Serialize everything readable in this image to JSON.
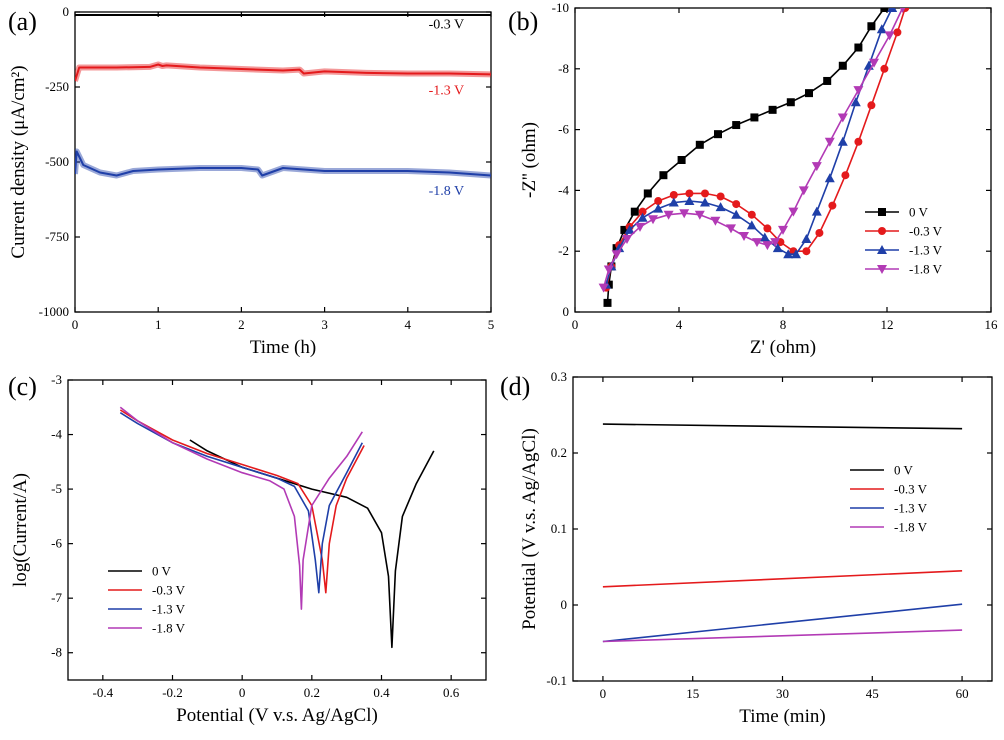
{
  "colors": {
    "black": "#000000",
    "red": "#e41a1c",
    "blue": "#1f3fa8",
    "magenta": "#b23ab5"
  },
  "chart_data": [
    {
      "id": "a",
      "panel_label": "(a)",
      "type": "line",
      "xlabel": "Time (h)",
      "ylabel": "Current density (μA/cm²)",
      "xlim": [
        0,
        5
      ],
      "ylim": [
        -1000,
        0
      ],
      "xticks": [
        0,
        1,
        2,
        3,
        4,
        5
      ],
      "yticks": [
        0,
        -250,
        -500,
        -750,
        -1000
      ],
      "series": [
        {
          "name": "-0.3 V",
          "color": "#000000",
          "x": [
            0,
            5
          ],
          "y": [
            -10,
            -10
          ]
        },
        {
          "name": "-1.3 V",
          "color": "#e41a1c",
          "x": [
            0,
            0.05,
            0.5,
            0.9,
            1.0,
            1.05,
            1.1,
            1.5,
            2,
            2.5,
            2.7,
            2.75,
            3,
            3.5,
            4,
            4.5,
            5
          ],
          "y": [
            -230,
            -185,
            -185,
            -183,
            -175,
            -180,
            -178,
            -185,
            -190,
            -195,
            -192,
            -205,
            -198,
            -203,
            -205,
            -205,
            -208
          ]
        },
        {
          "name": "-1.8 V",
          "color": "#1f3fa8",
          "x": [
            0,
            0.02,
            0.1,
            0.3,
            0.5,
            0.7,
            1,
            1.5,
            2,
            2.2,
            2.25,
            2.5,
            3,
            3.5,
            4,
            4.5,
            5
          ],
          "y": [
            -540,
            -465,
            -510,
            -535,
            -545,
            -530,
            -525,
            -520,
            -520,
            -525,
            -545,
            -520,
            -530,
            -530,
            -530,
            -535,
            -545
          ]
        }
      ],
      "annotations": [
        {
          "text": "-0.3 V",
          "x": 4.25,
          "y": -55,
          "color": "#000000"
        },
        {
          "text": "-1.3 V",
          "x": 4.25,
          "y": -275,
          "color": "#e41a1c"
        },
        {
          "text": "-1.8 V",
          "x": 4.25,
          "y": -610,
          "color": "#1f3fa8"
        }
      ]
    },
    {
      "id": "b",
      "panel_label": "(b)",
      "type": "scatter",
      "xlabel": "Z' (ohm)",
      "ylabel": "-Z'' (ohm)",
      "xlim": [
        0,
        16
      ],
      "ylim": [
        0,
        -10
      ],
      "xticks": [
        0,
        4,
        8,
        12,
        16
      ],
      "yticks": [
        0,
        -2,
        -4,
        -6,
        -8,
        -10
      ],
      "legend": "right",
      "series": [
        {
          "name": "0 V",
          "color": "#000000",
          "marker": "square",
          "x": [
            1.25,
            1.3,
            1.4,
            1.6,
            1.9,
            2.3,
            2.8,
            3.4,
            4.1,
            4.8,
            5.5,
            6.2,
            6.9,
            7.6,
            8.3,
            9.0,
            9.7,
            10.3,
            10.9,
            11.4,
            11.9
          ],
          "y": [
            -0.3,
            -0.9,
            -1.5,
            -2.1,
            -2.7,
            -3.3,
            -3.9,
            -4.5,
            -5.0,
            -5.5,
            -5.85,
            -6.15,
            -6.4,
            -6.65,
            -6.9,
            -7.2,
            -7.6,
            -8.1,
            -8.7,
            -9.4,
            -10
          ]
        },
        {
          "name": "-0.3 V",
          "color": "#e41a1c",
          "marker": "circle",
          "x": [
            1.2,
            1.4,
            1.7,
            2.1,
            2.6,
            3.2,
            3.8,
            4.4,
            5.0,
            5.6,
            6.2,
            6.8,
            7.4,
            7.9,
            8.4,
            8.9,
            9.4,
            9.9,
            10.4,
            10.9,
            11.4,
            11.9,
            12.4,
            12.7
          ],
          "y": [
            -0.8,
            -1.5,
            -2.2,
            -2.8,
            -3.3,
            -3.65,
            -3.85,
            -3.9,
            -3.9,
            -3.8,
            -3.55,
            -3.2,
            -2.75,
            -2.3,
            -2.0,
            -2.0,
            -2.6,
            -3.5,
            -4.5,
            -5.6,
            -6.8,
            -8.0,
            -9.2,
            -10
          ]
        },
        {
          "name": "-1.3 V",
          "color": "#1f3fa8",
          "marker": "triangle-up",
          "x": [
            1.2,
            1.4,
            1.7,
            2.1,
            2.6,
            3.2,
            3.8,
            4.4,
            5.0,
            5.6,
            6.2,
            6.8,
            7.3,
            7.8,
            8.2,
            8.5,
            8.9,
            9.3,
            9.8,
            10.3,
            10.8,
            11.3,
            11.8,
            12.2
          ],
          "y": [
            -0.9,
            -1.5,
            -2.1,
            -2.7,
            -3.1,
            -3.4,
            -3.6,
            -3.65,
            -3.6,
            -3.45,
            -3.2,
            -2.85,
            -2.45,
            -2.1,
            -1.9,
            -1.9,
            -2.4,
            -3.3,
            -4.4,
            -5.6,
            -6.9,
            -8.1,
            -9.3,
            -10
          ]
        },
        {
          "name": "-1.8 V",
          "color": "#b23ab5",
          "marker": "triangle-down",
          "x": [
            1.1,
            1.3,
            1.6,
            2.0,
            2.5,
            3.0,
            3.6,
            4.2,
            4.8,
            5.4,
            6.0,
            6.5,
            7.0,
            7.4,
            7.7,
            8.0,
            8.4,
            8.8,
            9.3,
            9.8,
            10.3,
            10.9,
            11.5,
            12.1,
            12.6
          ],
          "y": [
            -0.8,
            -1.4,
            -1.9,
            -2.4,
            -2.8,
            -3.05,
            -3.2,
            -3.25,
            -3.2,
            -3.0,
            -2.75,
            -2.5,
            -2.3,
            -2.2,
            -2.3,
            -2.7,
            -3.3,
            -4.0,
            -4.8,
            -5.6,
            -6.4,
            -7.3,
            -8.2,
            -9.1,
            -10
          ]
        }
      ]
    },
    {
      "id": "c",
      "panel_label": "(c)",
      "type": "line",
      "xlabel": "Potential (V v.s. Ag/AgCl)",
      "ylabel": "log(Current/A)",
      "xlim": [
        -0.5,
        0.7
      ],
      "ylim": [
        -8.5,
        -3
      ],
      "xticks": [
        -0.4,
        -0.2,
        0.0,
        0.2,
        0.4,
        0.6
      ],
      "yticks": [
        -3,
        -4,
        -5,
        -6,
        -7,
        -8
      ],
      "legend": "bottom-left",
      "series": [
        {
          "name": "0 V",
          "color": "#000000",
          "x": [
            -0.15,
            -0.1,
            0.0,
            0.1,
            0.2,
            0.3,
            0.36,
            0.4,
            0.42,
            0.43,
            0.44,
            0.46,
            0.5,
            0.55
          ],
          "y": [
            -4.1,
            -4.3,
            -4.6,
            -4.8,
            -5.0,
            -5.15,
            -5.35,
            -5.8,
            -6.6,
            -7.9,
            -6.5,
            -5.5,
            -4.9,
            -4.3
          ]
        },
        {
          "name": "-0.3 V",
          "color": "#e41a1c",
          "x": [
            -0.35,
            -0.3,
            -0.2,
            -0.1,
            0.0,
            0.1,
            0.16,
            0.2,
            0.23,
            0.24,
            0.25,
            0.27,
            0.3,
            0.35
          ],
          "y": [
            -3.55,
            -3.75,
            -4.1,
            -4.35,
            -4.55,
            -4.75,
            -4.9,
            -5.3,
            -6.3,
            -6.9,
            -6.0,
            -5.3,
            -4.8,
            -4.2
          ]
        },
        {
          "name": "-1.3 V",
          "color": "#1f3fa8",
          "x": [
            -0.35,
            -0.3,
            -0.2,
            -0.1,
            0.0,
            0.1,
            0.15,
            0.19,
            0.21,
            0.22,
            0.23,
            0.25,
            0.3,
            0.345
          ],
          "y": [
            -3.6,
            -3.8,
            -4.15,
            -4.4,
            -4.6,
            -4.8,
            -4.95,
            -5.4,
            -6.3,
            -6.9,
            -6.0,
            -5.3,
            -4.7,
            -4.15
          ]
        },
        {
          "name": "-1.8 V",
          "color": "#b23ab5",
          "x": [
            -0.35,
            -0.3,
            -0.2,
            -0.1,
            0.0,
            0.08,
            0.12,
            0.15,
            0.165,
            0.17,
            0.175,
            0.2,
            0.25,
            0.3,
            0.345
          ],
          "y": [
            -3.5,
            -3.75,
            -4.15,
            -4.45,
            -4.7,
            -4.85,
            -5.0,
            -5.5,
            -6.4,
            -7.2,
            -6.3,
            -5.3,
            -4.8,
            -4.4,
            -3.95
          ]
        }
      ]
    },
    {
      "id": "d",
      "panel_label": "(d)",
      "type": "line",
      "xlabel": "Time (min)",
      "ylabel": "Potential (V v.s. Ag/AgCl)",
      "xlim": [
        -5,
        65
      ],
      "ylim": [
        -0.1,
        0.3
      ],
      "xticks": [
        0,
        15,
        30,
        45,
        60
      ],
      "yticks": [
        -0.1,
        0.0,
        0.1,
        0.2,
        0.3
      ],
      "legend": "right",
      "series": [
        {
          "name": "0 V",
          "color": "#000000",
          "x": [
            0,
            60
          ],
          "y": [
            0.238,
            0.232
          ]
        },
        {
          "name": "-0.3 V",
          "color": "#e41a1c",
          "x": [
            0,
            60
          ],
          "y": [
            0.024,
            0.045
          ]
        },
        {
          "name": "-1.3 V",
          "color": "#1f3fa8",
          "x": [
            0,
            60
          ],
          "y": [
            -0.048,
            0.001
          ]
        },
        {
          "name": "-1.8 V",
          "color": "#b23ab5",
          "x": [
            0,
            60
          ],
          "y": [
            -0.048,
            -0.033
          ]
        }
      ]
    }
  ]
}
